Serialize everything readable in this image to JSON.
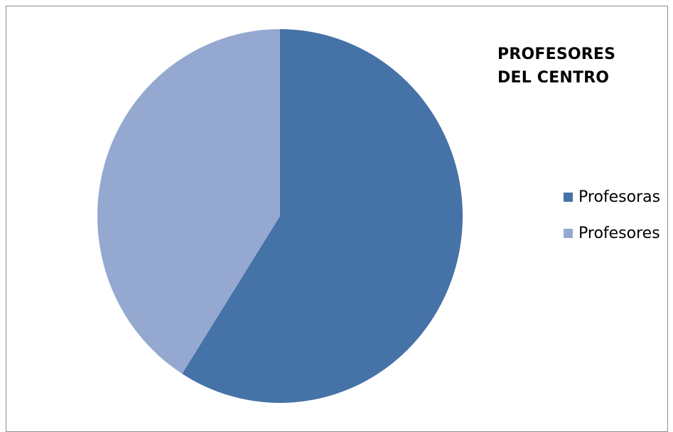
{
  "chart_data": {
    "type": "pie",
    "title": "PROFESORES\nDEL CENTRO",
    "legend_position": "right",
    "slices": [
      {
        "label": "Profesoras",
        "value": 59,
        "color": "#4572A7"
      },
      {
        "label": "Profesores",
        "value": 41,
        "color": "#95A8D0"
      }
    ]
  }
}
